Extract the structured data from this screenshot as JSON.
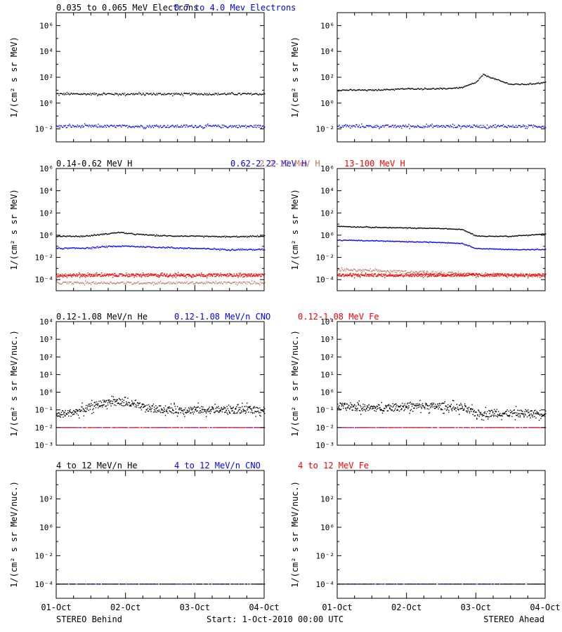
{
  "colors": {
    "black": "#000000",
    "blue": "#0000ff",
    "brown": "#c07860",
    "red": "#ff0000"
  },
  "footer": {
    "left": "STEREO Behind",
    "center": "Start:  1-Oct-2010 00:00 UTC",
    "right": "STEREO Ahead"
  },
  "x_axis": {
    "ticks": [
      "01-Oct",
      "02-Oct",
      "03-Oct",
      "04-Oct"
    ],
    "range": [
      0,
      3
    ]
  },
  "chart_data": [
    {
      "type": "scatter",
      "row": 1,
      "headers": [
        {
          "text": "0.035 to 0.065 MeV Electrons",
          "color": "black"
        },
        {
          "text": "0.7 to 4.0 Mev Electrons",
          "color": "blue"
        }
      ],
      "ylabel": "1/(cm² s sr MeV)",
      "yrange_log10": [
        -3,
        7
      ],
      "ytick_exponents": [
        -2,
        0,
        2,
        4,
        6
      ],
      "panels": [
        {
          "spacecraft": "STEREO Behind",
          "series": [
            {
              "color": "black",
              "name": "0.035 to 0.065 MeV Electrons",
              "x": [
                0,
                0.5,
                1,
                1.5,
                2,
                2.5,
                3
              ],
              "log10_y": [
                0.7,
                0.7,
                0.7,
                0.7,
                0.7,
                0.7,
                0.7
              ],
              "spread": 0.15
            },
            {
              "color": "blue",
              "name": "0.7 to 4.0 Mev Electrons",
              "x": [
                0,
                0.5,
                1,
                1.5,
                2,
                2.5,
                3
              ],
              "log10_y": [
                -1.8,
                -1.8,
                -1.8,
                -1.8,
                -1.8,
                -1.8,
                -1.8
              ],
              "spread": 0.2
            }
          ]
        },
        {
          "spacecraft": "STEREO Ahead",
          "series": [
            {
              "color": "black",
              "name": "0.035 to 0.065 MeV Electrons",
              "x": [
                0,
                0.5,
                1,
                1.5,
                1.8,
                1.9,
                2.0,
                2.05,
                2.1,
                2.2,
                2.35,
                2.5,
                2.75,
                3
              ],
              "log10_y": [
                1.0,
                1.0,
                1.1,
                1.1,
                1.2,
                1.4,
                1.6,
                1.9,
                2.2,
                2.0,
                1.7,
                1.45,
                1.45,
                1.6
              ],
              "spread": 0.08
            },
            {
              "color": "blue",
              "name": "0.7 to 4.0 Mev Electrons",
              "x": [
                0,
                0.5,
                1,
                1.5,
                2,
                2.5,
                3
              ],
              "log10_y": [
                -1.8,
                -1.8,
                -1.8,
                -1.8,
                -1.8,
                -1.8,
                -1.8
              ],
              "spread": 0.2
            }
          ]
        }
      ]
    },
    {
      "type": "scatter",
      "row": 2,
      "headers": [
        {
          "text": "0.14-0.62 MeV H",
          "color": "black"
        },
        {
          "text": "0.62-2.22 MeV H",
          "color": "blue"
        },
        {
          "text": "2.2-12 MeV H",
          "color": "brown"
        },
        {
          "text": "13-100 MeV H",
          "color": "red"
        }
      ],
      "ylabel": "1/(cm² s sr MeV)",
      "yrange_log10": [
        -5,
        6
      ],
      "ytick_exponents": [
        -4,
        -2,
        0,
        2,
        4,
        6
      ],
      "panels": [
        {
          "spacecraft": "STEREO Behind",
          "series": [
            {
              "color": "black",
              "name": "0.14-0.62 MeV H",
              "x": [
                0,
                0.4,
                0.7,
                0.9,
                1.1,
                1.5,
                2,
                2.5,
                3
              ],
              "log10_y": [
                -0.1,
                -0.1,
                0.1,
                0.25,
                0.1,
                -0.05,
                -0.1,
                -0.15,
                -0.1
              ],
              "spread": 0.08
            },
            {
              "color": "blue",
              "name": "0.62-2.22 MeV H",
              "x": [
                0,
                0.5,
                0.8,
                1,
                1.5,
                2,
                2.5,
                3
              ],
              "log10_y": [
                -1.2,
                -1.15,
                -1.0,
                -1.0,
                -1.1,
                -1.2,
                -1.3,
                -1.3
              ],
              "spread": 0.1
            },
            {
              "color": "red",
              "name": "13-100 MeV H",
              "x": [
                0,
                1,
                2,
                3
              ],
              "log10_y": [
                -3.6,
                -3.6,
                -3.6,
                -3.6
              ],
              "spread": 0.25
            },
            {
              "color": "brown",
              "name": "2.2-12 MeV H",
              "x": [
                0,
                1,
                2,
                3
              ],
              "log10_y": [
                -4.3,
                -4.3,
                -4.3,
                -4.3
              ],
              "spread": 0.2
            }
          ]
        },
        {
          "spacecraft": "STEREO Ahead",
          "series": [
            {
              "color": "black",
              "name": "0.14-0.62 MeV H",
              "x": [
                0,
                0.5,
                1,
                1.5,
                1.8,
                2.0,
                2.1,
                2.5,
                3
              ],
              "log10_y": [
                0.8,
                0.7,
                0.65,
                0.6,
                0.5,
                -0.05,
                -0.1,
                -0.1,
                0.1
              ],
              "spread": 0.06
            },
            {
              "color": "blue",
              "name": "0.62-2.22 MeV H",
              "x": [
                0,
                0.5,
                1,
                1.5,
                1.8,
                2.0,
                2.5,
                3
              ],
              "log10_y": [
                -0.45,
                -0.5,
                -0.6,
                -0.65,
                -0.75,
                -1.2,
                -1.3,
                -1.3
              ],
              "spread": 0.06
            },
            {
              "color": "brown",
              "name": "2.2-12 MeV H",
              "x": [
                0,
                0.5,
                1,
                1.5,
                2,
                2.5,
                3
              ],
              "log10_y": [
                -3.1,
                -3.2,
                -3.3,
                -3.4,
                -3.5,
                -3.6,
                -3.6
              ],
              "spread": 0.2
            },
            {
              "color": "red",
              "name": "13-100 MeV H",
              "x": [
                0,
                1,
                2,
                3
              ],
              "log10_y": [
                -3.6,
                -3.6,
                -3.6,
                -3.6
              ],
              "spread": 0.25
            }
          ]
        }
      ]
    },
    {
      "type": "scatter",
      "row": 3,
      "headers": [
        {
          "text": "0.12-1.08 MeV/n He",
          "color": "black"
        },
        {
          "text": "0.12-1.08 MeV/n CNO",
          "color": "blue"
        },
        {
          "text": "0.12-1.08 MeV Fe",
          "color": "red"
        }
      ],
      "ylabel": "1/(cm² s sr MeV/nuc.)",
      "yrange_log10": [
        -3,
        4
      ],
      "ytick_exponents": [
        -3,
        -2,
        -1,
        0,
        1,
        2,
        3,
        4
      ],
      "ytick_labels": [
        "10⁻³",
        "10⁻²",
        "10⁻¹",
        "10⁰",
        "10¹",
        "10²",
        "10³",
        "10⁴"
      ],
      "panels": [
        {
          "spacecraft": "STEREO Behind",
          "series": [
            {
              "color": "black",
              "name": "0.12-1.08 MeV/n He",
              "x": [
                0,
                0.3,
                0.6,
                0.8,
                1.0,
                1.3,
                1.6,
                2,
                2.5,
                3
              ],
              "log10_y": [
                -1.3,
                -1.1,
                -0.7,
                -0.5,
                -0.6,
                -0.9,
                -1.0,
                -1.0,
                -1.0,
                -1.0
              ],
              "spread": 0.4
            },
            {
              "color": "blue",
              "name": "0.12-1.08 MeV/n CNO",
              "x": [
                0,
                3
              ],
              "log10_y": [
                -2,
                -2
              ],
              "spread": 0
            },
            {
              "color": "red",
              "name": "0.12-1.08 MeV Fe",
              "x": [
                0,
                3
              ],
              "log10_y": [
                -2,
                -2
              ],
              "spread": 0
            }
          ]
        },
        {
          "spacecraft": "STEREO Ahead",
          "series": [
            {
              "color": "black",
              "name": "0.12-1.08 MeV/n He",
              "x": [
                0,
                0.5,
                1.0,
                1.5,
                1.8,
                2.0,
                2.5,
                3
              ],
              "log10_y": [
                -0.8,
                -0.9,
                -0.8,
                -0.8,
                -0.9,
                -1.2,
                -1.2,
                -1.2
              ],
              "spread": 0.4
            },
            {
              "color": "blue",
              "name": "0.12-1.08 MeV/n CNO",
              "x": [
                0,
                3
              ],
              "log10_y": [
                -2,
                -2
              ],
              "spread": 0
            },
            {
              "color": "red",
              "name": "0.12-1.08 MeV Fe",
              "x": [
                0,
                3
              ],
              "log10_y": [
                -2,
                -2
              ],
              "spread": 0
            }
          ]
        }
      ]
    },
    {
      "type": "scatter",
      "row": 4,
      "headers": [
        {
          "text": "4 to 12 MeV/n He",
          "color": "black"
        },
        {
          "text": "4 to 12 MeV/n CNO",
          "color": "blue"
        },
        {
          "text": "4 to 12 MeV Fe",
          "color": "red"
        }
      ],
      "ylabel": "1/(cm² s sr MeV/nuc.)",
      "yrange_log10": [
        -5,
        4
      ],
      "ytick_exponents": [
        -4,
        -2,
        0,
        2
      ],
      "panels": [
        {
          "spacecraft": "STEREO Behind",
          "series": [
            {
              "color": "blue",
              "name": "4 to 12 MeV/n CNO",
              "x": [
                0,
                3
              ],
              "log10_y": [
                -4,
                -4
              ],
              "spread": 0
            },
            {
              "color": "black",
              "name": "4 to 12 MeV/n He",
              "x": [
                0,
                3
              ],
              "log10_y": [
                -4,
                -4
              ],
              "spread": 0
            }
          ]
        },
        {
          "spacecraft": "STEREO Ahead",
          "series": [
            {
              "color": "blue",
              "name": "4 to 12 MeV/n CNO",
              "x": [
                0,
                3
              ],
              "log10_y": [
                -4,
                -4
              ],
              "spread": 0
            },
            {
              "color": "black",
              "name": "4 to 12 MeV/n He",
              "x": [
                0,
                3
              ],
              "log10_y": [
                -4,
                -4
              ],
              "spread": 0
            }
          ]
        }
      ]
    }
  ]
}
